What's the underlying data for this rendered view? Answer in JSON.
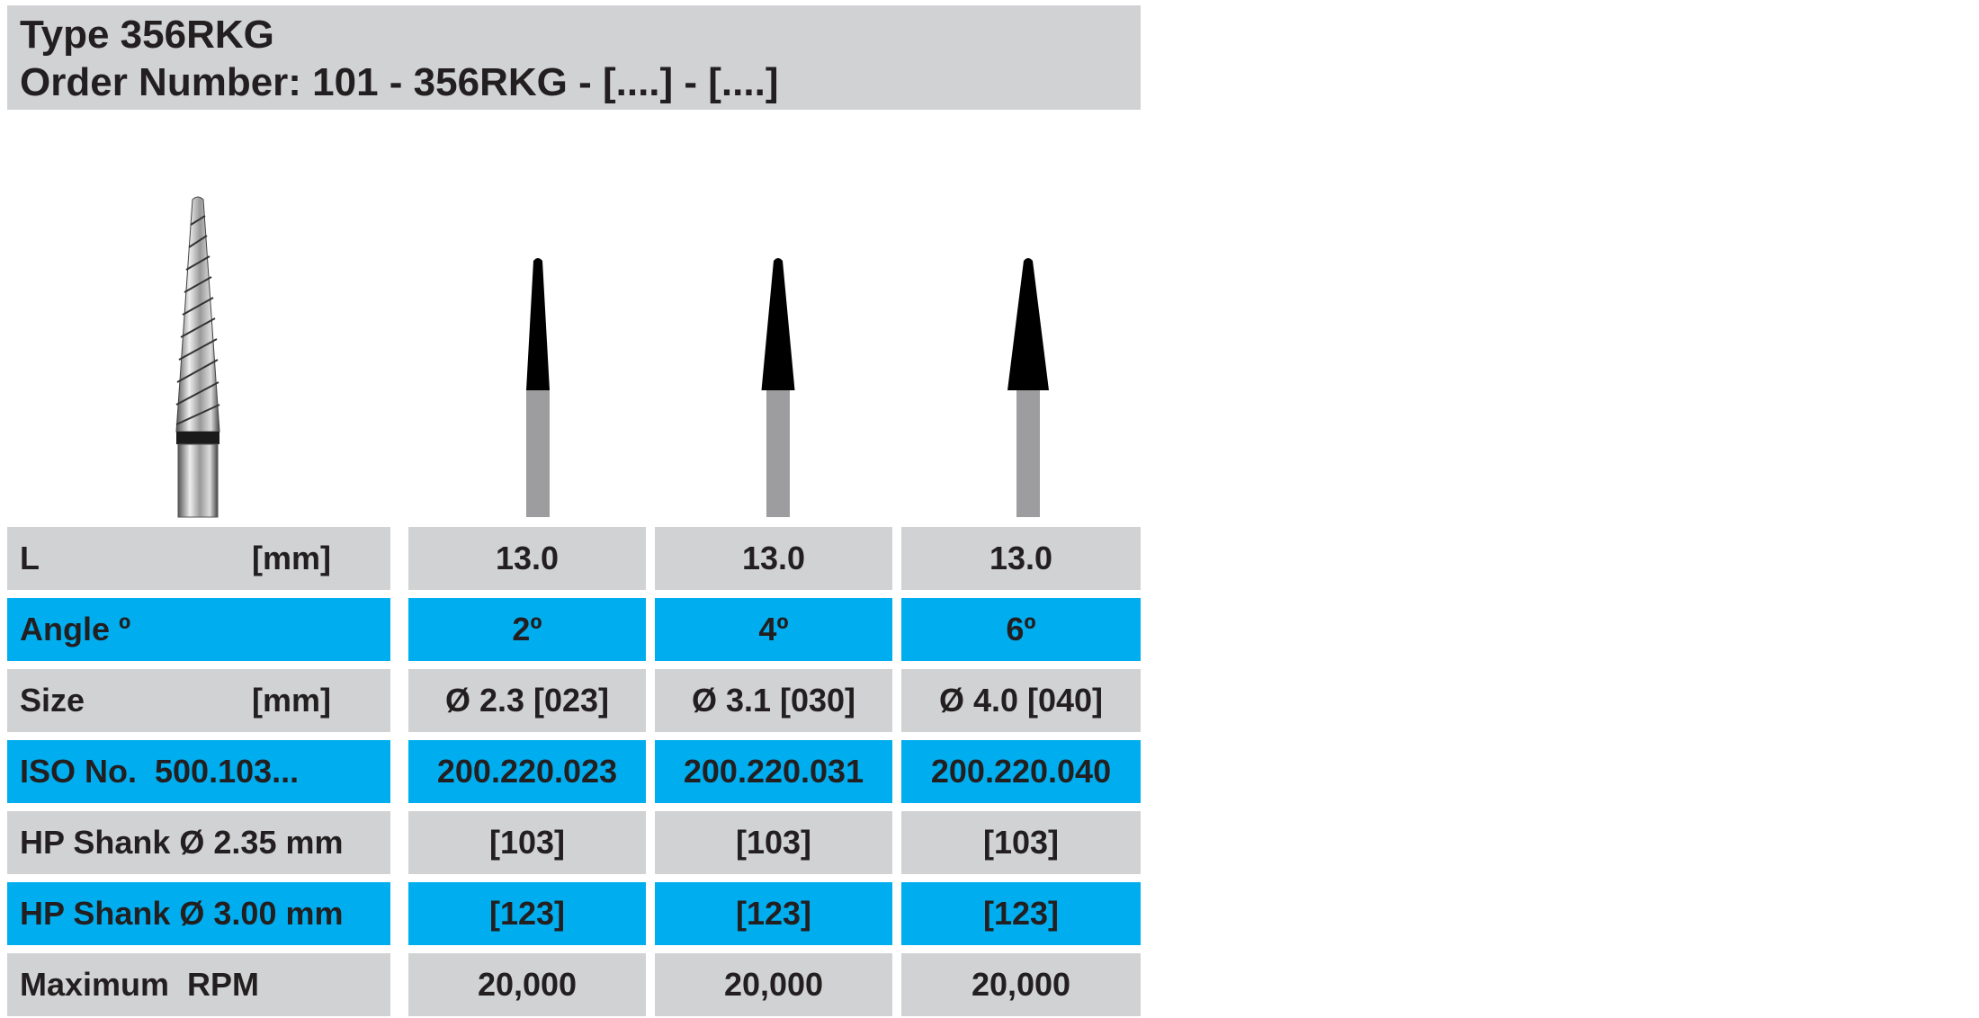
{
  "header": {
    "title": "Type 356RKG",
    "order_number": "Order Number: 101 - 356RKG - [....] - [....]"
  },
  "table": {
    "rows": [
      {
        "label": "L",
        "unit": "[mm]",
        "cells": [
          "13.0",
          "13.0",
          "13.0"
        ]
      },
      {
        "label": "Angle º",
        "cells": [
          "2º",
          "4º",
          "6º"
        ]
      },
      {
        "label": "Size",
        "unit": "[mm]",
        "cells": [
          "Ø 2.3 [023]",
          "Ø 3.1 [030]",
          "Ø 4.0 [040]"
        ]
      },
      {
        "label": "ISO No.  500.103...",
        "cells": [
          "200.220.023",
          "200.220.031",
          "200.220.040"
        ]
      },
      {
        "label": "HP Shank Ø 2.35 mm",
        "cells": [
          "[103]",
          "[103]",
          "[103]"
        ]
      },
      {
        "label": "HP Shank Ø 3.00 mm",
        "cells": [
          "[123]",
          "[123]",
          "[123]"
        ]
      },
      {
        "label": "Maximum  RPM",
        "cells": [
          "20,000",
          "20,000",
          "20,000"
        ]
      }
    ]
  }
}
